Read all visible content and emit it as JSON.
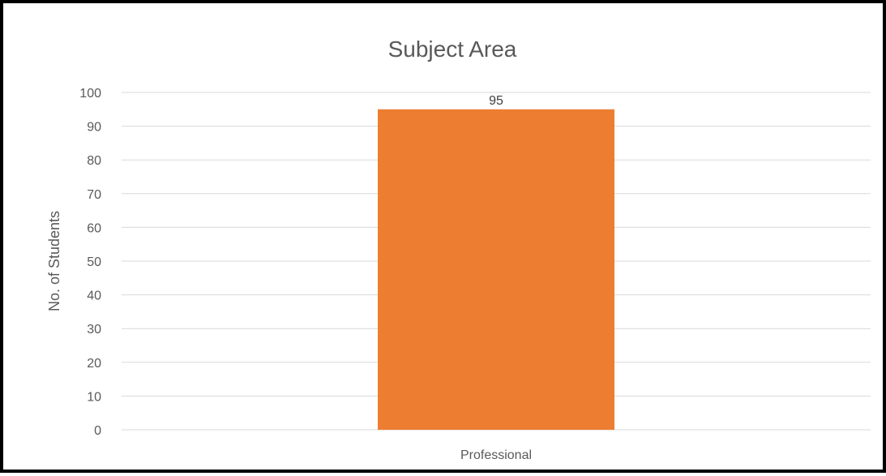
{
  "chart_data": {
    "type": "bar",
    "title": "Subject Area",
    "xlabel": "",
    "ylabel": "No. of Students",
    "categories": [
      "Professional"
    ],
    "values": [
      95
    ],
    "data_labels": [
      "95"
    ],
    "ylim": [
      0,
      100
    ],
    "yticks": [
      0,
      10,
      20,
      30,
      40,
      50,
      60,
      70,
      80,
      90,
      100
    ],
    "ytick_labels": [
      "0",
      "10",
      "20",
      "30",
      "40",
      "50",
      "60",
      "70",
      "80",
      "90",
      "100"
    ],
    "grid": true,
    "legend": "none",
    "colors": {
      "bar": "#ED7D31",
      "grid": "#D9D9D9",
      "text": "#595959",
      "frame": "#000000"
    }
  }
}
